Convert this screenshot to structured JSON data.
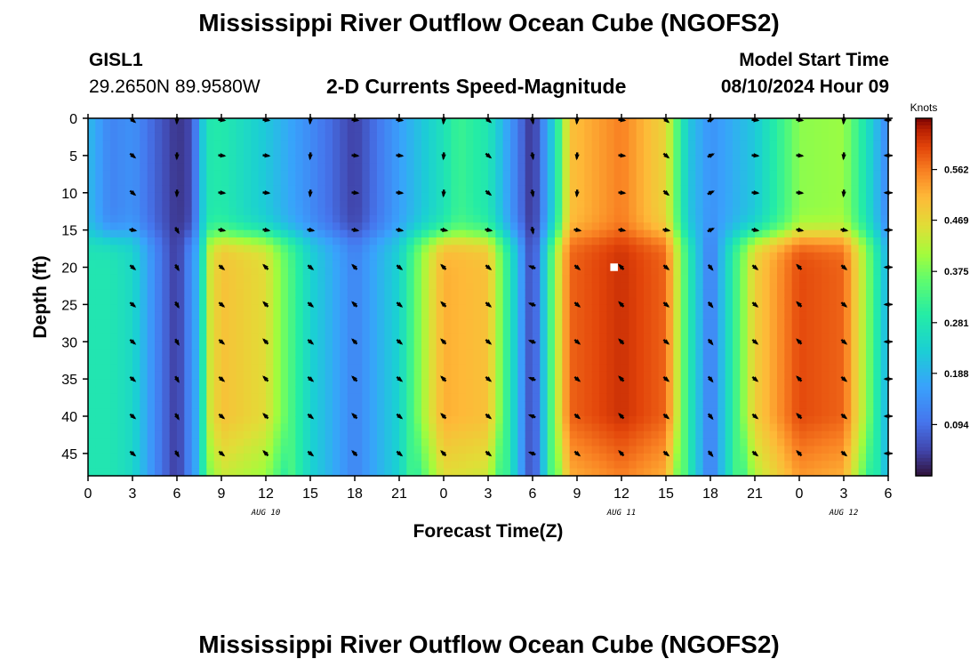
{
  "titles": {
    "main": "Mississippi River Outflow Ocean Cube (NGOFS2)",
    "repeat": "Mississippi River Outflow Ocean Cube (NGOFS2)"
  },
  "station": {
    "id": "GISL1",
    "coordinates": "29.2650N  89.9580W"
  },
  "model": {
    "start_label": "Model Start Time",
    "start_value": "08/10/2024 Hour 09"
  },
  "chart_data": {
    "type": "heatmap",
    "title": "2-D Currents Speed-Magnitude",
    "xlabel": "Forecast Time(Z)",
    "ylabel": "Depth (ft)",
    "x_range": [
      0,
      54
    ],
    "y_range": [
      0,
      48
    ],
    "x_ticks": [
      0,
      3,
      6,
      9,
      12,
      15,
      18,
      21,
      24,
      27,
      30,
      33,
      36,
      39,
      42,
      45,
      48,
      51,
      54
    ],
    "x_tick_labels": [
      "0",
      "3",
      "6",
      "9",
      "12",
      "15",
      "18",
      "21",
      "0",
      "3",
      "6",
      "9",
      "12",
      "15",
      "18",
      "21",
      "0",
      "3",
      "6"
    ],
    "y_ticks": [
      0,
      5,
      10,
      15,
      20,
      25,
      30,
      35,
      40,
      45
    ],
    "y_tick_labels": [
      "0",
      "5",
      "10",
      "15",
      "20",
      "25",
      "30",
      "35",
      "40",
      "45"
    ],
    "date_labels": [
      {
        "x": 12,
        "text": "AUG 10"
      },
      {
        "x": 36,
        "text": "AUG 11"
      },
      {
        "x": 51,
        "text": "AUG 12"
      }
    ],
    "colorbar": {
      "label": "Knots",
      "min": 0,
      "max": 0.656,
      "ticks": [
        0.094,
        0.188,
        0.281,
        0.375,
        0.469,
        0.562
      ],
      "tick_labels": [
        "0.094",
        "0.188",
        "0.281",
        "0.375",
        "0.469",
        "0.562"
      ]
    },
    "surface_layer_0_15ft": [
      {
        "x": 0,
        "speed": 0.2
      },
      {
        "x": 1.5,
        "speed": 0.12
      },
      {
        "x": 3,
        "speed": 0.14
      },
      {
        "x": 4.5,
        "speed": 0.08
      },
      {
        "x": 6,
        "speed": 0.03
      },
      {
        "x": 7,
        "speed": 0.05
      },
      {
        "x": 8,
        "speed": 0.28
      },
      {
        "x": 9,
        "speed": 0.29
      },
      {
        "x": 12,
        "speed": 0.22
      },
      {
        "x": 15,
        "speed": 0.13
      },
      {
        "x": 18,
        "speed": 0.04
      },
      {
        "x": 21,
        "speed": 0.16
      },
      {
        "x": 24,
        "speed": 0.27
      },
      {
        "x": 25,
        "speed": 0.32
      },
      {
        "x": 27,
        "speed": 0.28
      },
      {
        "x": 28.5,
        "speed": 0.15
      },
      {
        "x": 30,
        "speed": 0.02
      },
      {
        "x": 31.5,
        "speed": 0.25
      },
      {
        "x": 32.5,
        "speed": 0.5
      },
      {
        "x": 36,
        "speed": 0.56
      },
      {
        "x": 39,
        "speed": 0.47
      },
      {
        "x": 40.5,
        "speed": 0.22
      },
      {
        "x": 42,
        "speed": 0.14
      },
      {
        "x": 45,
        "speed": 0.22
      },
      {
        "x": 47,
        "speed": 0.33
      },
      {
        "x": 48,
        "speed": 0.39
      },
      {
        "x": 51,
        "speed": 0.4
      },
      {
        "x": 52.5,
        "speed": 0.27
      },
      {
        "x": 54,
        "speed": 0.12
      }
    ],
    "deep_layer_15_48ft": [
      {
        "x": 0,
        "speed": 0.28
      },
      {
        "x": 1.5,
        "speed": 0.28
      },
      {
        "x": 3,
        "speed": 0.25
      },
      {
        "x": 4.5,
        "speed": 0.13
      },
      {
        "x": 6,
        "speed": 0.03
      },
      {
        "x": 7.5,
        "speed": 0.2
      },
      {
        "x": 8.2,
        "speed": 0.44
      },
      {
        "x": 9,
        "speed": 0.5
      },
      {
        "x": 12,
        "speed": 0.46
      },
      {
        "x": 15,
        "speed": 0.24
      },
      {
        "x": 18,
        "speed": 0.12
      },
      {
        "x": 21,
        "speed": 0.24
      },
      {
        "x": 22.5,
        "speed": 0.4
      },
      {
        "x": 24,
        "speed": 0.52
      },
      {
        "x": 27,
        "speed": 0.5
      },
      {
        "x": 28.5,
        "speed": 0.28
      },
      {
        "x": 30,
        "speed": 0.03
      },
      {
        "x": 31.5,
        "speed": 0.4
      },
      {
        "x": 32.5,
        "speed": 0.58
      },
      {
        "x": 36,
        "speed": 0.62
      },
      {
        "x": 39,
        "speed": 0.58
      },
      {
        "x": 40.5,
        "speed": 0.3
      },
      {
        "x": 42,
        "speed": 0.1
      },
      {
        "x": 43.5,
        "speed": 0.3
      },
      {
        "x": 45,
        "speed": 0.48
      },
      {
        "x": 48,
        "speed": 0.6
      },
      {
        "x": 51,
        "speed": 0.58
      },
      {
        "x": 52.5,
        "speed": 0.4
      },
      {
        "x": 54,
        "speed": 0.18
      }
    ],
    "vector_x": [
      3,
      6,
      9,
      12,
      15,
      18,
      21,
      24,
      27,
      30,
      33,
      36,
      39,
      42,
      45,
      48,
      51,
      54
    ],
    "vector_depths": [
      0,
      5,
      10,
      15,
      20,
      25,
      30,
      35,
      40,
      45
    ],
    "marker": {
      "x": 35.5,
      "depth": 20
    }
  }
}
